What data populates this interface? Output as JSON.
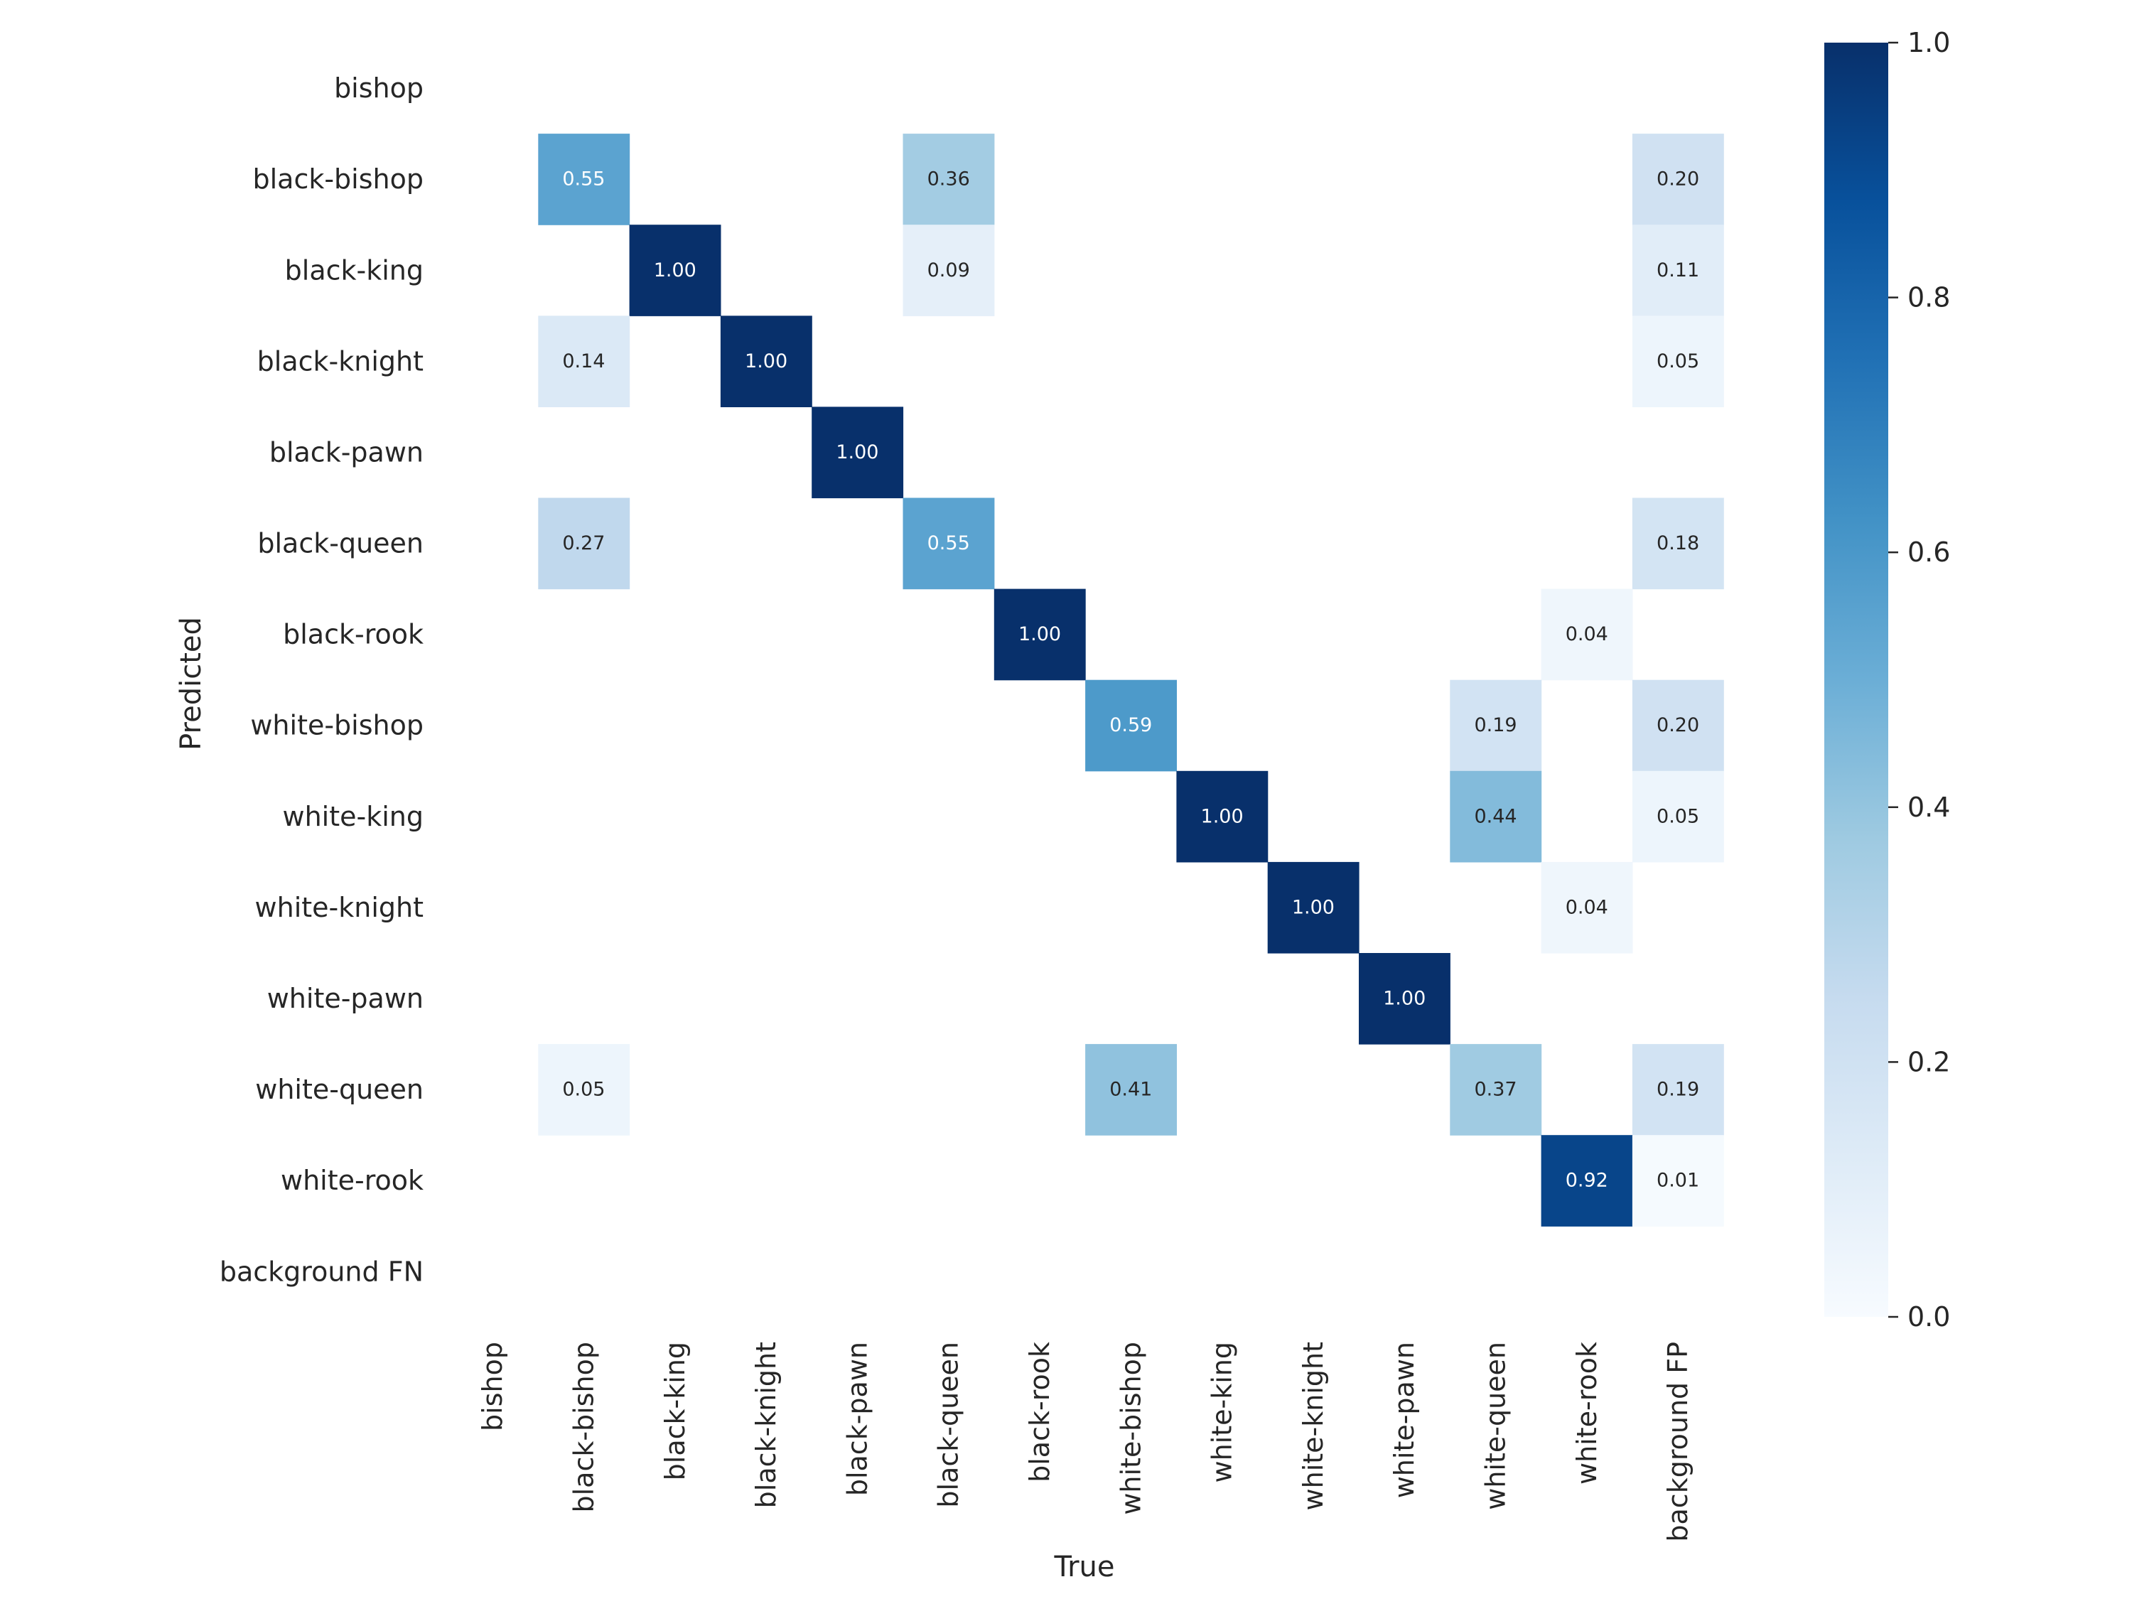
{
  "chart_data": {
    "type": "heatmap",
    "xlabel": "True",
    "ylabel": "Predicted",
    "x_categories": [
      "bishop",
      "black-bishop",
      "black-king",
      "black-knight",
      "black-pawn",
      "black-queen",
      "black-rook",
      "white-bishop",
      "white-king",
      "white-knight",
      "white-pawn",
      "white-queen",
      "white-rook",
      "background FP"
    ],
    "y_categories": [
      "bishop",
      "black-bishop",
      "black-king",
      "black-knight",
      "black-pawn",
      "black-queen",
      "black-rook",
      "white-bishop",
      "white-king",
      "white-knight",
      "white-pawn",
      "white-queen",
      "white-rook",
      "background FN"
    ],
    "values": [
      [
        null,
        null,
        null,
        null,
        null,
        null,
        null,
        null,
        null,
        null,
        null,
        null,
        null,
        null
      ],
      [
        null,
        0.55,
        null,
        null,
        null,
        0.36,
        null,
        null,
        null,
        null,
        null,
        null,
        null,
        0.2
      ],
      [
        null,
        null,
        1.0,
        null,
        null,
        0.09,
        null,
        null,
        null,
        null,
        null,
        null,
        null,
        0.11
      ],
      [
        null,
        0.14,
        null,
        1.0,
        null,
        null,
        null,
        null,
        null,
        null,
        null,
        null,
        null,
        0.05
      ],
      [
        null,
        null,
        null,
        null,
        1.0,
        null,
        null,
        null,
        null,
        null,
        null,
        null,
        null,
        null
      ],
      [
        null,
        0.27,
        null,
        null,
        null,
        0.55,
        null,
        null,
        null,
        null,
        null,
        null,
        null,
        0.18
      ],
      [
        null,
        null,
        null,
        null,
        null,
        null,
        1.0,
        null,
        null,
        null,
        null,
        null,
        0.04,
        null
      ],
      [
        null,
        null,
        null,
        null,
        null,
        null,
        null,
        0.59,
        null,
        null,
        null,
        0.19,
        null,
        0.2
      ],
      [
        null,
        null,
        null,
        null,
        null,
        null,
        null,
        null,
        1.0,
        null,
        null,
        0.44,
        null,
        0.05
      ],
      [
        null,
        null,
        null,
        null,
        null,
        null,
        null,
        null,
        null,
        1.0,
        null,
        null,
        0.04,
        null
      ],
      [
        null,
        null,
        null,
        null,
        null,
        null,
        null,
        null,
        null,
        null,
        1.0,
        null,
        null,
        null
      ],
      [
        null,
        0.05,
        null,
        null,
        null,
        null,
        null,
        0.41,
        null,
        null,
        null,
        0.37,
        null,
        0.19
      ],
      [
        null,
        null,
        null,
        null,
        null,
        null,
        null,
        null,
        null,
        null,
        null,
        null,
        0.92,
        0.01
      ],
      [
        null,
        null,
        null,
        null,
        null,
        null,
        null,
        null,
        null,
        null,
        null,
        null,
        null,
        null
      ]
    ],
    "colorbar": {
      "colormap": "Blues",
      "range": [
        0.0,
        1.0
      ],
      "ticks": [
        0.0,
        0.2,
        0.4,
        0.6,
        0.8,
        1.0
      ],
      "tick_labels": [
        "0.0",
        "0.2",
        "0.4",
        "0.6",
        "0.8",
        "1.0"
      ]
    },
    "value_format": "2 decimals",
    "grid": false,
    "legend": "colorbar right"
  }
}
